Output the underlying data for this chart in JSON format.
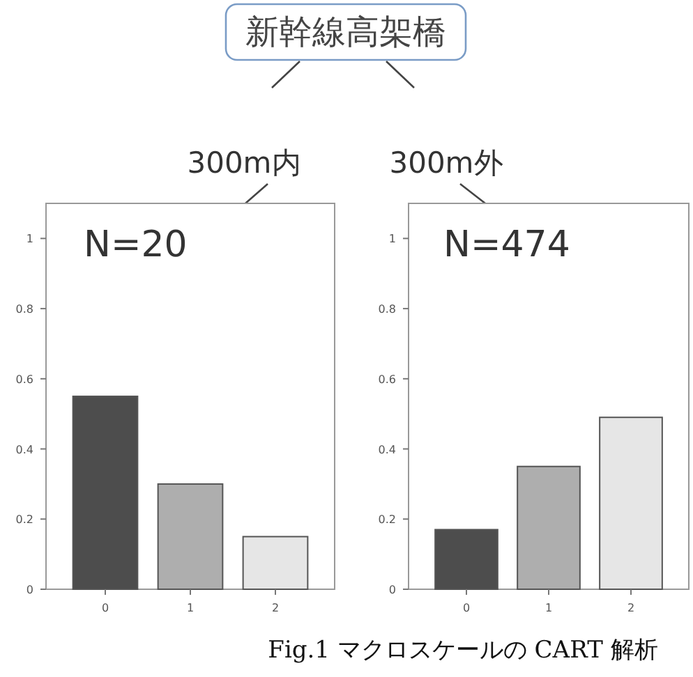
{
  "chart_data": [
    {
      "type": "other",
      "title": "新幹線高架橋",
      "annotations": [
        "Fig.1 マクロスケールの CART 解析"
      ]
    },
    {
      "type": "bar",
      "title": "300m内",
      "annotations": [
        "N=20"
      ],
      "categories": [
        "0",
        "1",
        "2"
      ],
      "values": [
        0.55,
        0.3,
        0.15
      ],
      "colors": [
        "#4d4d4d",
        "#aeaeae",
        "#e6e6e6"
      ],
      "ylim": [
        0,
        1.1
      ],
      "yticks": [
        0,
        0.2,
        0.4,
        0.6,
        0.8,
        1
      ]
    },
    {
      "type": "bar",
      "title": "300m外",
      "annotations": [
        "N=474"
      ],
      "categories": [
        "0",
        "1",
        "2"
      ],
      "values": [
        0.17,
        0.35,
        0.49
      ],
      "colors": [
        "#4d4d4d",
        "#aeaeae",
        "#e6e6e6"
      ],
      "ylim": [
        0,
        1.1
      ],
      "yticks": [
        0,
        0.2,
        0.4,
        0.6,
        0.8,
        1
      ]
    }
  ]
}
